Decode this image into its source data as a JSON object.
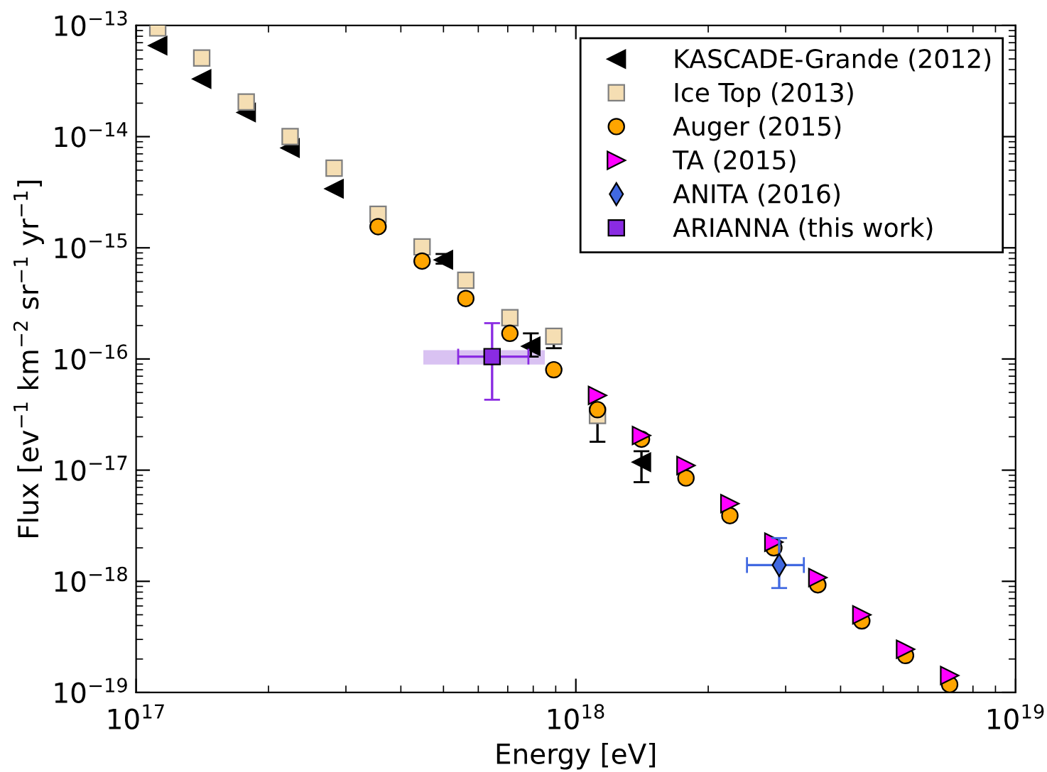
{
  "chart_data": {
    "type": "scatter",
    "xlabel": "Energy [eV]",
    "ylabel": "Flux [ev$^{−1}$ km$^{−2}$ sr$^{−1}$ yr$^{−1}$]",
    "log": "xy",
    "grid": false,
    "legend": "top right",
    "xlim": [
      1e+17,
      1e+19
    ],
    "ylim": [
      1e-19,
      1e-13
    ],
    "xticks": [
      {
        "value": 1e+17,
        "label": "10$^{17}$"
      },
      {
        "value": 1e+18,
        "label": "10$^{18}$"
      },
      {
        "value": 1e+19,
        "label": "10$^{19}$"
      }
    ],
    "yticks": [
      {
        "value": 1e-19,
        "label": "10$^{−19}$"
      },
      {
        "value": 1e-18,
        "label": "10$^{−18}$"
      },
      {
        "value": 1e-17,
        "label": "10$^{−17}$"
      },
      {
        "value": 1e-16,
        "label": "10$^{−16}$"
      },
      {
        "value": 1e-15,
        "label": "10$^{−15}$"
      },
      {
        "value": 1e-14,
        "label": "10$^{−14}$"
      },
      {
        "value": 1e-13,
        "label": "10$^{−13}$"
      }
    ],
    "series": [
      {
        "name": "KASCADE-Grande (2012)",
        "color": "#000000",
        "marker": "triangle-left",
        "x": [
          1.12e+17,
          1.41e+17,
          1.78e+17,
          2.24e+17,
          2.82e+17,
          5e+17,
          7.9e+17,
          1.41e+18
        ],
        "values": [
          6.6e-14,
          3.3e-14,
          1.65e-14,
          7.9e-15,
          3.4e-15,
          7.8e-16,
          1.3e-16,
          1.18e-17
        ],
        "errors": [
          null,
          null,
          null,
          null,
          null,
          [
            7.2e-16,
            8.8e-16
          ],
          [
            1.05e-16,
            1.7e-16
          ],
          [
            7.8e-18,
            1.48e-17
          ]
        ]
      },
      {
        "name": "Ice Top (2013)",
        "color": "#f5deb3",
        "marker": "square",
        "x": [
          1.12e+17,
          1.41e+17,
          1.78e+17,
          2.24e+17,
          2.82e+17,
          3.55e+17,
          4.47e+17,
          5.62e+17,
          7.08e+17,
          8.91e+17,
          1.12e+18
        ],
        "values": [
          9.5e-14,
          5.1e-14,
          2.05e-14,
          1e-14,
          5.2e-15,
          2e-15,
          1.02e-15,
          5.1e-16,
          2.35e-16,
          1.6e-16,
          3.1e-17
        ],
        "errors": [
          null,
          null,
          null,
          null,
          null,
          null,
          null,
          null,
          null,
          [
            1.25e-16,
            1.75e-16
          ],
          [
            1.8e-17,
            3.3e-17
          ]
        ]
      },
      {
        "name": "Auger (2015)",
        "color": "#ffa500",
        "marker": "circle",
        "x": [
          3.55e+17,
          4.47e+17,
          5.62e+17,
          7.08e+17,
          8.91e+17,
          1.12e+18,
          1.41e+18,
          1.78e+18,
          2.24e+18,
          2.82e+18,
          3.55e+18,
          4.47e+18,
          5.62e+18,
          7.08e+18
        ],
        "values": [
          1.55e-15,
          7.6e-16,
          3.5e-16,
          1.7e-16,
          8e-17,
          3.5e-17,
          1.9e-17,
          8.5e-18,
          3.9e-18,
          2e-18,
          9.3e-19,
          4.4e-19,
          2.15e-19,
          1.18e-19
        ]
      },
      {
        "name": "TA (2015)",
        "color": "#ff00ff",
        "marker": "triangle-right",
        "x": [
          1.12e+18,
          1.41e+18,
          1.78e+18,
          2.24e+18,
          2.82e+18,
          3.55e+18,
          4.47e+18,
          5.62e+18,
          7.08e+18
        ],
        "values": [
          4.7e-17,
          2.05e-17,
          1.1e-17,
          5e-18,
          2.25e-18,
          1.08e-18,
          5e-19,
          2.45e-19,
          1.42e-19
        ]
      },
      {
        "name": "ANITA (2016)",
        "color": "#4169e1",
        "marker": "diamond",
        "x": [
          2.9e+18
        ],
        "values": [
          1.4e-18
        ],
        "errors": [
          [
            8.7e-19,
            2.45e-18
          ]
        ],
        "xerrors": [
          [
            2.45e+18,
            3.3e+18
          ]
        ]
      },
      {
        "name": "ARIANNA (this work)",
        "color": "#8a2be2",
        "marker": "square",
        "x": [
          6.45e+17
        ],
        "values": [
          1.05e-16
        ],
        "errors": [
          [
            4.3e-17,
            2.1e-16
          ]
        ],
        "xerrors": [
          [
            5.4e+17,
            7.8e+17
          ]
        ]
      },
      {
        "type": "area",
        "color": "#d9c2f2",
        "x": [
          4.5e+17,
          8.5e+17
        ],
        "values": [
          null,
          null
        ],
        "lower": [
          8.9e-17,
          8.9e-17
        ],
        "upper": [
          1.2e-16,
          1.2e-16
        ]
      }
    ]
  }
}
